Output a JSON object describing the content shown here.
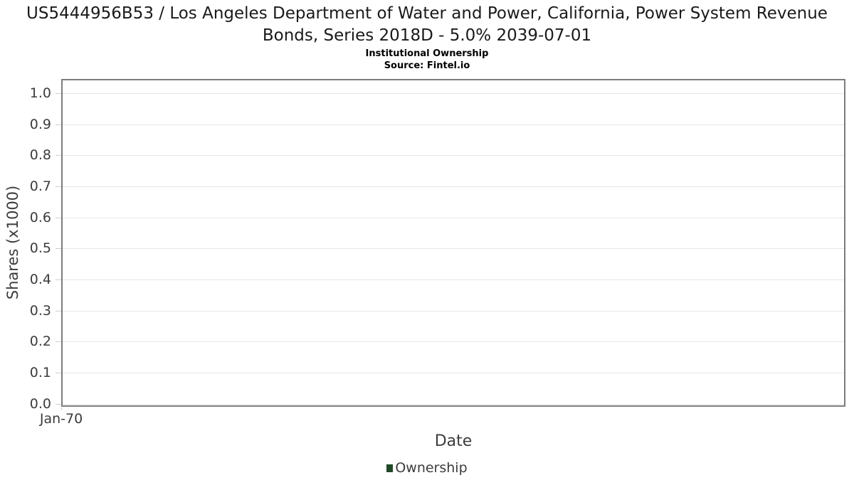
{
  "chart_data": {
    "type": "line",
    "title": "US5444956B53 / Los Angeles Department of Water and Power, California, Power System Revenue Bonds, Series 2018D - 5.0% 2039-07-01",
    "subtitle": "Institutional Ownership",
    "source": "Source: Fintel.io",
    "xlabel": "Date",
    "ylabel": "Shares (x1000)",
    "x_ticks": [
      {
        "label": "Jan-70",
        "position": 0.0
      }
    ],
    "y_ticks": [
      {
        "label": "1.0",
        "value": 1.0
      },
      {
        "label": "0.9",
        "value": 0.9
      },
      {
        "label": "0.8",
        "value": 0.8
      },
      {
        "label": "0.7",
        "value": 0.7
      },
      {
        "label": "0.6",
        "value": 0.6
      },
      {
        "label": "0.5",
        "value": 0.5
      },
      {
        "label": "0.4",
        "value": 0.4
      },
      {
        "label": "0.3",
        "value": 0.3
      },
      {
        "label": "0.2",
        "value": 0.2
      },
      {
        "label": "0.1",
        "value": 0.1
      },
      {
        "label": "0.0",
        "value": 0.0
      }
    ],
    "ylim": [
      -0.01,
      1.046
    ],
    "grid": true,
    "legend_position": "bottom-center",
    "series": [
      {
        "name": "Ownership",
        "color": "#1e4a26",
        "x": [],
        "values": []
      }
    ],
    "legend": [
      {
        "label": "Ownership",
        "color": "#1e4a26"
      }
    ]
  },
  "colors": {
    "plot_border": "#7d7d7d",
    "gridline": "#e6e6e6",
    "tick_mark": "#cfcfcf",
    "tick_text": "#3c3c3c",
    "title_text": "#1a1a1a",
    "legend_swatch": "#1e4a26"
  }
}
